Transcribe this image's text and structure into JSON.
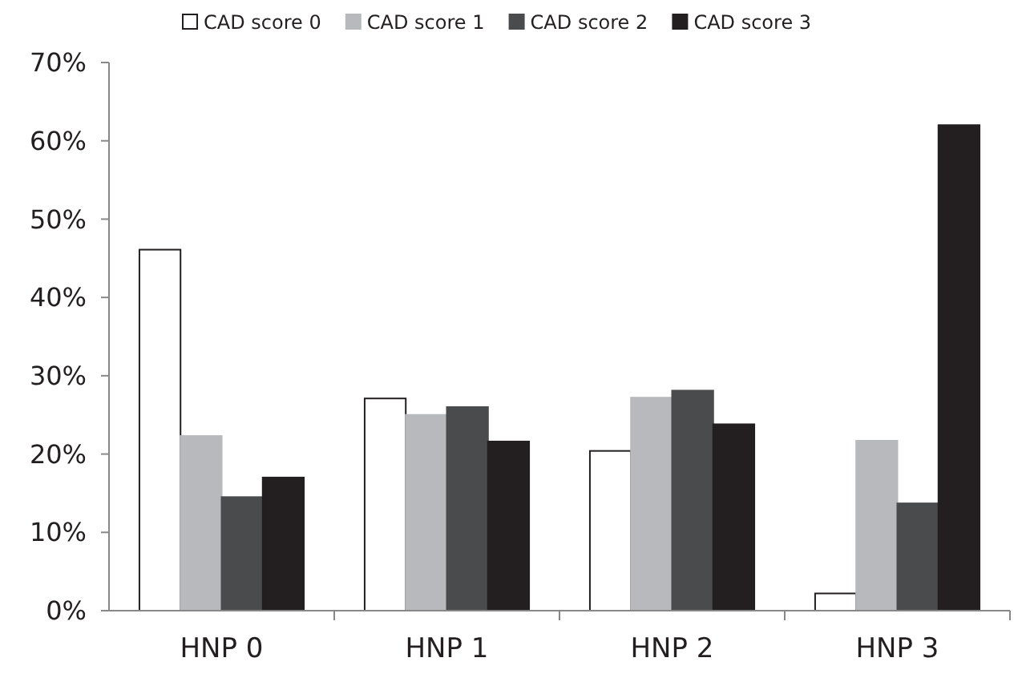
{
  "chart_data": {
    "type": "bar",
    "categories": [
      "HNP 0",
      "HNP 1",
      "HNP 2",
      "HNP 3"
    ],
    "series": [
      {
        "name": "CAD score 0",
        "color": "#ffffff",
        "values": [
          46.1,
          27.1,
          20.4,
          2.2
        ]
      },
      {
        "name": "CAD score 1",
        "color": "#b8b9bc",
        "values": [
          22.3,
          25.0,
          27.2,
          21.7
        ]
      },
      {
        "name": "CAD score 2",
        "color": "#4a4b4d",
        "values": [
          14.5,
          26.0,
          28.1,
          13.7
        ]
      },
      {
        "name": "CAD score 3",
        "color": "#231f20",
        "values": [
          17.0,
          21.6,
          23.8,
          62.0
        ]
      }
    ],
    "ylim": [
      0,
      70
    ],
    "yticks": [
      {
        "value": 0,
        "label": "0%"
      },
      {
        "value": 10,
        "label": "10%"
      },
      {
        "value": 20,
        "label": "20%"
      },
      {
        "value": 30,
        "label": "30%"
      },
      {
        "value": 40,
        "label": "40%"
      },
      {
        "value": 50,
        "label": "50%"
      },
      {
        "value": 60,
        "label": "60%"
      },
      {
        "value": 70,
        "label": "70%"
      }
    ],
    "legend": "top",
    "grid": false
  }
}
